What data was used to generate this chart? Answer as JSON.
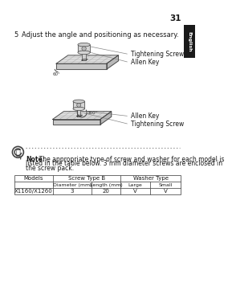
{
  "page_number": "31",
  "step_number": "5",
  "step_text": "Adjust the angle and positioning as necessary.",
  "note_text": "The appropriate type of screw and washer for each model is listed in the table below. 3 mm diameter screws are enclosed in the screw pack.",
  "note_line1": "listed in the table below. 3 mm diameter screws are enclosed in",
  "note_line2": "the screw pack.",
  "table_headers_row1": [
    "Models",
    "Screw Type B",
    "Washer Type"
  ],
  "table_headers_row2": [
    "",
    "Diameter (mm)",
    "Length (mm)",
    "Large",
    "Small"
  ],
  "table_data": [
    "X1160/X1260",
    "3",
    "20",
    "V",
    "V"
  ],
  "label_tightening_screw_top": "Tightening Screw",
  "label_allen_key_top": "Allen Key",
  "label_allen_key_bottom": "Allen Key",
  "label_tightening_screw_bottom": "Tightening Screw",
  "angle_label_top": "60°",
  "angle_label_bottom": "360°",
  "bg_color": "#ffffff",
  "text_color": "#1a1a1a",
  "sidebar_bg": "#1a1a1a",
  "sidebar_text": "English",
  "dotted_line_color": "#888888",
  "table_border_color": "#555555",
  "font_size_step": 6.0,
  "font_size_label": 5.5,
  "font_size_note": 5.5,
  "font_size_table": 5.0,
  "font_size_page": 7.5
}
